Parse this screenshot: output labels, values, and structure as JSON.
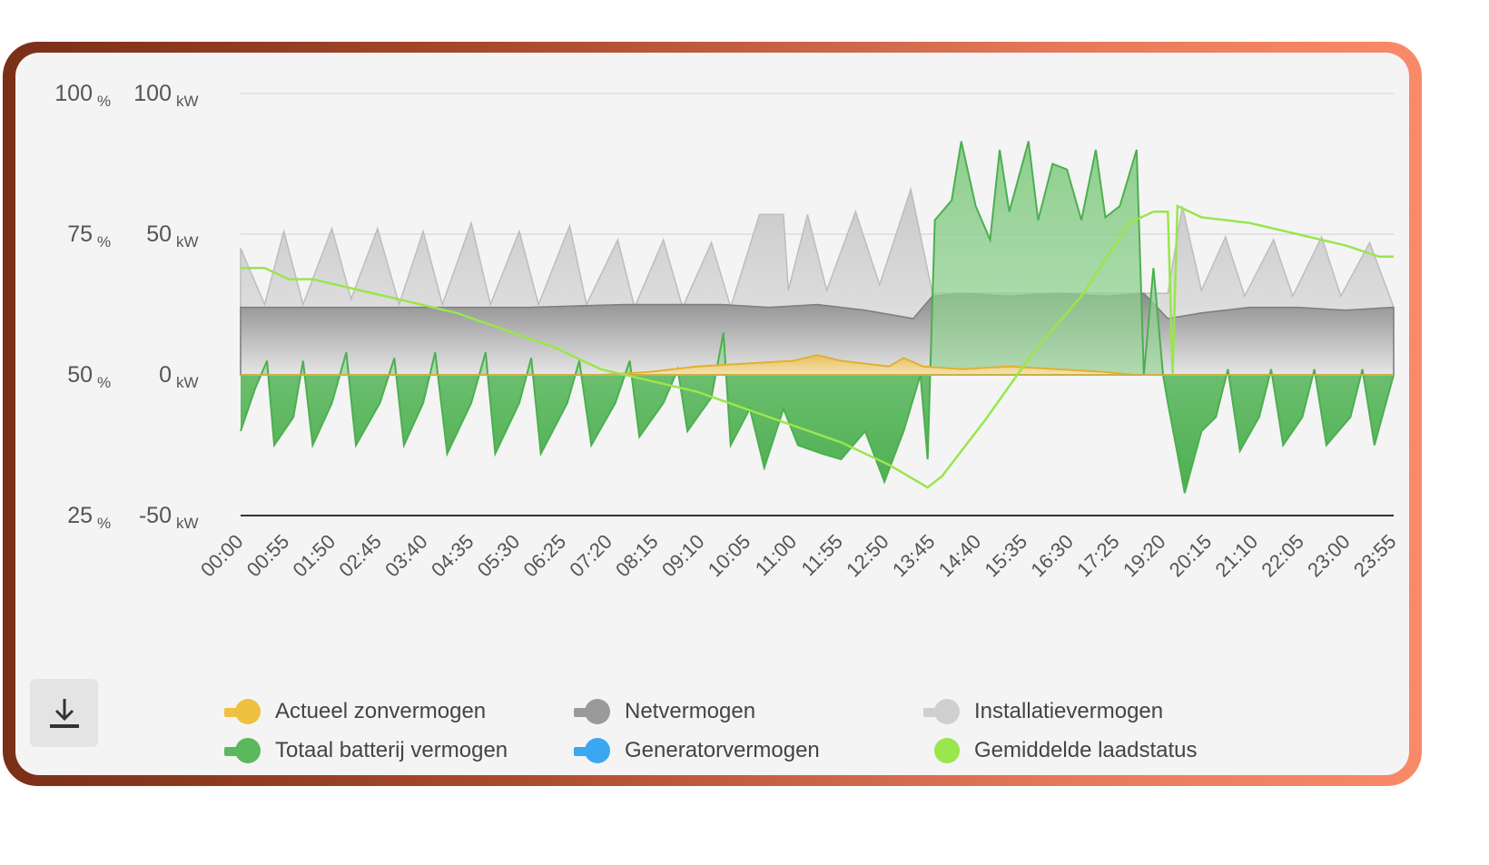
{
  "chart_data": {
    "type": "area",
    "left_axis": {
      "unit": "%",
      "ticks": [
        100,
        75,
        50,
        25
      ]
    },
    "right_axis": {
      "unit": "kW",
      "ticks": [
        100,
        50,
        0,
        -50
      ],
      "ylim": [
        -50,
        100
      ]
    },
    "x_tick_labels": [
      "00:00",
      "00:55",
      "01:50",
      "02:45",
      "03:40",
      "04:35",
      "05:30",
      "06:25",
      "07:20",
      "08:15",
      "09:10",
      "10:05",
      "11:00",
      "11:55",
      "12:50",
      "13:45",
      "14:40",
      "15:35",
      "16:30",
      "17:25",
      "19:20",
      "20:15",
      "21:10",
      "22:05",
      "23:00",
      "23:55"
    ],
    "x_range_hours": [
      0,
      24
    ],
    "series": [
      {
        "name": "Installatievermogen",
        "color": "#cfcfcf",
        "axis": "kW",
        "points": [
          [
            0,
            45
          ],
          [
            0.5,
            25
          ],
          [
            0.9,
            51
          ],
          [
            1.3,
            25
          ],
          [
            1.9,
            52
          ],
          [
            2.3,
            27
          ],
          [
            2.85,
            52
          ],
          [
            3.3,
            25
          ],
          [
            3.8,
            51
          ],
          [
            4.2,
            25
          ],
          [
            4.8,
            54
          ],
          [
            5.2,
            25
          ],
          [
            5.8,
            51
          ],
          [
            6.2,
            25
          ],
          [
            6.85,
            53
          ],
          [
            7.2,
            25
          ],
          [
            7.85,
            48
          ],
          [
            8.2,
            24
          ],
          [
            8.8,
            48
          ],
          [
            9.2,
            24
          ],
          [
            9.8,
            47
          ],
          [
            10.2,
            24
          ],
          [
            10.8,
            57
          ],
          [
            11.3,
            57
          ],
          [
            11.4,
            30
          ],
          [
            11.8,
            57
          ],
          [
            12.2,
            30
          ],
          [
            12.8,
            58
          ],
          [
            13.3,
            32
          ],
          [
            13.95,
            66
          ],
          [
            14.4,
            29
          ],
          [
            14.4,
            29
          ],
          [
            19.3,
            29
          ],
          [
            19.6,
            60
          ],
          [
            20.0,
            30
          ],
          [
            20.5,
            49
          ],
          [
            20.9,
            28
          ],
          [
            21.5,
            48
          ],
          [
            21.9,
            28
          ],
          [
            22.5,
            49
          ],
          [
            22.9,
            28
          ],
          [
            23.5,
            47
          ],
          [
            24.0,
            24
          ]
        ]
      },
      {
        "name": "Netvermogen",
        "color": "#9a9a9a",
        "axis": "kW",
        "points": [
          [
            0,
            24
          ],
          [
            2,
            24
          ],
          [
            4,
            24
          ],
          [
            6,
            24
          ],
          [
            8,
            25
          ],
          [
            10,
            25
          ],
          [
            11,
            24
          ],
          [
            12,
            25
          ],
          [
            13,
            23
          ],
          [
            14,
            20
          ],
          [
            14.4,
            28
          ],
          [
            15,
            29
          ],
          [
            16,
            28
          ],
          [
            17,
            29
          ],
          [
            18,
            28
          ],
          [
            18.8,
            29
          ],
          [
            19.3,
            20
          ],
          [
            20,
            22
          ],
          [
            21,
            24
          ],
          [
            22,
            24
          ],
          [
            23,
            23
          ],
          [
            24,
            24
          ]
        ]
      },
      {
        "name": "Actueel zonvermogen",
        "color": "#f0c040",
        "axis": "kW",
        "points": [
          [
            0,
            0
          ],
          [
            7.5,
            0
          ],
          [
            8.5,
            1
          ],
          [
            9.5,
            3
          ],
          [
            10.5,
            4
          ],
          [
            11.5,
            5
          ],
          [
            12.0,
            7
          ],
          [
            12.5,
            5
          ],
          [
            13,
            4
          ],
          [
            13.5,
            3
          ],
          [
            13.8,
            6
          ],
          [
            14.2,
            3
          ],
          [
            15,
            2
          ],
          [
            16,
            3
          ],
          [
            17,
            2
          ],
          [
            18,
            1
          ],
          [
            18.6,
            0
          ],
          [
            24,
            0
          ]
        ]
      },
      {
        "name": "Totaal batterij vermogen",
        "color": "#5cb85c",
        "axis": "kW",
        "points": [
          [
            0,
            -20
          ],
          [
            0.3,
            -5
          ],
          [
            0.55,
            5
          ],
          [
            0.7,
            -25
          ],
          [
            1.1,
            -15
          ],
          [
            1.3,
            5
          ],
          [
            1.5,
            -25
          ],
          [
            1.9,
            -10
          ],
          [
            2.2,
            8
          ],
          [
            2.4,
            -25
          ],
          [
            2.9,
            -10
          ],
          [
            3.2,
            6
          ],
          [
            3.4,
            -25
          ],
          [
            3.8,
            -10
          ],
          [
            4.05,
            8
          ],
          [
            4.3,
            -28
          ],
          [
            4.8,
            -10
          ],
          [
            5.1,
            8
          ],
          [
            5.3,
            -28
          ],
          [
            5.8,
            -10
          ],
          [
            6.05,
            6
          ],
          [
            6.25,
            -28
          ],
          [
            6.8,
            -10
          ],
          [
            7.05,
            5
          ],
          [
            7.3,
            -25
          ],
          [
            7.8,
            -10
          ],
          [
            8.1,
            5
          ],
          [
            8.3,
            -22
          ],
          [
            8.8,
            -10
          ],
          [
            9.1,
            2
          ],
          [
            9.3,
            -20
          ],
          [
            9.8,
            -8
          ],
          [
            10.05,
            15
          ],
          [
            10.2,
            -25
          ],
          [
            10.6,
            -12
          ],
          [
            10.9,
            -33
          ],
          [
            11.3,
            -12
          ],
          [
            11.6,
            -25
          ],
          [
            12.1,
            -28
          ],
          [
            12.5,
            -30
          ],
          [
            13.0,
            -20
          ],
          [
            13.4,
            -38
          ],
          [
            13.8,
            -20
          ],
          [
            14.15,
            0
          ],
          [
            14.3,
            -30
          ],
          [
            14.45,
            55
          ],
          [
            14.8,
            62
          ],
          [
            15.0,
            83
          ],
          [
            15.3,
            60
          ],
          [
            15.6,
            48
          ],
          [
            15.8,
            80
          ],
          [
            16.0,
            58
          ],
          [
            16.4,
            83
          ],
          [
            16.6,
            55
          ],
          [
            16.9,
            75
          ],
          [
            17.2,
            73
          ],
          [
            17.5,
            55
          ],
          [
            17.8,
            80
          ],
          [
            18.0,
            56
          ],
          [
            18.3,
            60
          ],
          [
            18.65,
            80
          ],
          [
            18.8,
            0
          ],
          [
            19.0,
            38
          ],
          [
            19.2,
            0
          ],
          [
            19.3,
            -10
          ],
          [
            19.5,
            -28
          ],
          [
            19.65,
            -42
          ],
          [
            20.0,
            -20
          ],
          [
            20.3,
            -15
          ],
          [
            20.55,
            2
          ],
          [
            20.8,
            -27
          ],
          [
            21.2,
            -15
          ],
          [
            21.45,
            2
          ],
          [
            21.7,
            -25
          ],
          [
            22.1,
            -15
          ],
          [
            22.35,
            2
          ],
          [
            22.6,
            -25
          ],
          [
            23.1,
            -15
          ],
          [
            23.35,
            2
          ],
          [
            23.6,
            -25
          ],
          [
            24.0,
            0
          ]
        ]
      },
      {
        "name": "Generatorvermogen",
        "color": "#3aa8f0",
        "axis": "kW",
        "points": [
          [
            0,
            0
          ],
          [
            24,
            0
          ]
        ]
      },
      {
        "name": "Gemiddelde laadstatus",
        "color": "#99e64d",
        "axis": "%",
        "points": [
          [
            0,
            69
          ],
          [
            0.5,
            69
          ],
          [
            1,
            67
          ],
          [
            1.5,
            67
          ],
          [
            2.5,
            65
          ],
          [
            3.5,
            63
          ],
          [
            4.5,
            61
          ],
          [
            5.5,
            58
          ],
          [
            6.5,
            55
          ],
          [
            7.5,
            51
          ],
          [
            8.5,
            49
          ],
          [
            9.5,
            47
          ],
          [
            10.5,
            44
          ],
          [
            11.5,
            41
          ],
          [
            12.5,
            38
          ],
          [
            13.5,
            34
          ],
          [
            14.3,
            30
          ],
          [
            14.6,
            32
          ],
          [
            15.5,
            42
          ],
          [
            16.5,
            54
          ],
          [
            17.5,
            64
          ],
          [
            18.5,
            77
          ],
          [
            19.0,
            79
          ],
          [
            19.3,
            79
          ],
          [
            19.4,
            50
          ],
          [
            19.5,
            80
          ],
          [
            20,
            78
          ],
          [
            21,
            77
          ],
          [
            22,
            75
          ],
          [
            23,
            73
          ],
          [
            23.7,
            71
          ],
          [
            24,
            71
          ]
        ]
      }
    ],
    "legend": [
      {
        "label": "Actueel zonvermogen",
        "color": "#f0c040"
      },
      {
        "label": "Netvermogen",
        "color": "#9a9a9a"
      },
      {
        "label": "Installatievermogen",
        "color": "#cfcfcf"
      },
      {
        "label": "Totaal batterij vermogen",
        "color": "#5cb85c"
      },
      {
        "label": "Generatorvermogen",
        "color": "#3aa8f0"
      },
      {
        "label": "Gemiddelde laadstatus",
        "color": "#99e64d"
      }
    ]
  },
  "download": {
    "icon": "download-icon"
  }
}
